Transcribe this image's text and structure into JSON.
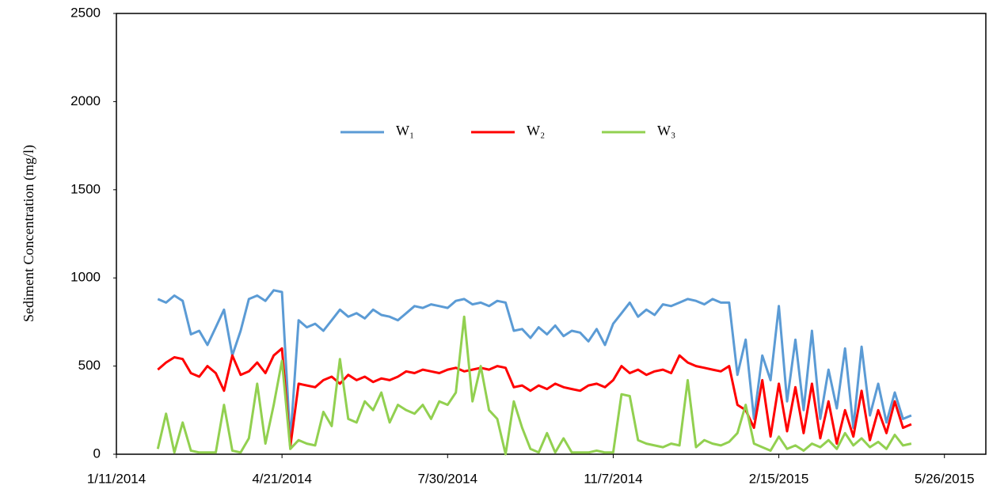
{
  "chart_data": {
    "type": "line",
    "y_label": "Sediment Concentration  (mg/l)",
    "x": [
      "2014-02-05",
      "2014-02-10",
      "2014-02-15",
      "2014-02-20",
      "2014-02-25",
      "2014-03-02",
      "2014-03-07",
      "2014-03-12",
      "2014-03-17",
      "2014-03-22",
      "2014-03-27",
      "2014-04-01",
      "2014-04-06",
      "2014-04-11",
      "2014-04-16",
      "2014-04-21",
      "2014-04-26",
      "2014-05-01",
      "2014-05-06",
      "2014-05-11",
      "2014-05-16",
      "2014-05-21",
      "2014-05-26",
      "2014-05-31",
      "2014-06-05",
      "2014-06-10",
      "2014-06-15",
      "2014-06-20",
      "2014-06-25",
      "2014-06-30",
      "2014-07-05",
      "2014-07-10",
      "2014-07-15",
      "2014-07-20",
      "2014-07-25",
      "2014-07-30",
      "2014-08-04",
      "2014-08-09",
      "2014-08-14",
      "2014-08-19",
      "2014-08-24",
      "2014-08-29",
      "2014-09-03",
      "2014-09-08",
      "2014-09-13",
      "2014-09-18",
      "2014-09-23",
      "2014-09-28",
      "2014-10-03",
      "2014-10-08",
      "2014-10-13",
      "2014-10-18",
      "2014-10-23",
      "2014-10-28",
      "2014-11-02",
      "2014-11-07",
      "2014-11-12",
      "2014-11-17",
      "2014-11-22",
      "2014-11-27",
      "2014-12-02",
      "2014-12-07",
      "2014-12-12",
      "2014-12-17",
      "2014-12-22",
      "2014-12-27",
      "2015-01-01",
      "2015-01-06",
      "2015-01-11",
      "2015-01-16",
      "2015-01-21",
      "2015-01-26",
      "2015-01-31",
      "2015-02-05",
      "2015-02-10",
      "2015-02-15",
      "2015-02-20",
      "2015-02-25",
      "2015-03-02",
      "2015-03-07",
      "2015-03-12",
      "2015-03-17",
      "2015-03-22",
      "2015-03-27",
      "2015-04-01",
      "2015-04-06",
      "2015-04-11",
      "2015-04-16",
      "2015-04-21",
      "2015-04-26",
      "2015-05-01",
      "2015-05-06"
    ],
    "series": [
      {
        "name": "W₁",
        "color": "#5b9bd5",
        "values": [
          880,
          860,
          900,
          870,
          680,
          700,
          620,
          720,
          820,
          560,
          700,
          880,
          900,
          870,
          930,
          920,
          70,
          760,
          720,
          740,
          700,
          760,
          820,
          780,
          800,
          770,
          820,
          790,
          780,
          760,
          800,
          840,
          830,
          850,
          840,
          830,
          870,
          880,
          850,
          860,
          840,
          870,
          860,
          700,
          710,
          660,
          720,
          680,
          730,
          670,
          700,
          690,
          640,
          710,
          620,
          740,
          800,
          860,
          780,
          820,
          790,
          850,
          840,
          860,
          880,
          870,
          850,
          880,
          860,
          860,
          450,
          650,
          200,
          560,
          420,
          840,
          300,
          650,
          250,
          700,
          200,
          480,
          260,
          600,
          150,
          610,
          220,
          400,
          180,
          350,
          200,
          220
        ]
      },
      {
        "name": "W₂",
        "color": "#ff0000",
        "values": [
          480,
          520,
          550,
          540,
          460,
          440,
          500,
          460,
          360,
          560,
          450,
          470,
          520,
          460,
          560,
          600,
          40,
          400,
          390,
          380,
          420,
          440,
          400,
          450,
          420,
          440,
          410,
          430,
          420,
          440,
          470,
          460,
          480,
          470,
          460,
          480,
          490,
          470,
          480,
          490,
          480,
          500,
          490,
          380,
          390,
          360,
          390,
          370,
          400,
          380,
          370,
          360,
          390,
          400,
          380,
          420,
          500,
          460,
          480,
          450,
          470,
          480,
          460,
          560,
          520,
          500,
          490,
          480,
          470,
          500,
          280,
          250,
          150,
          420,
          100,
          400,
          130,
          380,
          120,
          400,
          90,
          300,
          60,
          250,
          100,
          360,
          80,
          250,
          120,
          300,
          150,
          170
        ]
      },
      {
        "name": "W₃",
        "color": "#92d050",
        "values": [
          30,
          230,
          10,
          180,
          20,
          10,
          10,
          10,
          280,
          20,
          10,
          90,
          400,
          60,
          280,
          530,
          30,
          80,
          60,
          50,
          240,
          160,
          540,
          200,
          180,
          300,
          250,
          350,
          180,
          280,
          250,
          230,
          280,
          200,
          300,
          280,
          350,
          780,
          300,
          500,
          250,
          200,
          0,
          300,
          150,
          30,
          10,
          120,
          10,
          90,
          10,
          10,
          10,
          20,
          10,
          10,
          340,
          330,
          80,
          60,
          50,
          40,
          60,
          50,
          420,
          40,
          80,
          60,
          50,
          70,
          120,
          280,
          60,
          40,
          20,
          100,
          30,
          50,
          20,
          60,
          40,
          80,
          30,
          120,
          50,
          90,
          40,
          70,
          30,
          110,
          50,
          60
        ]
      }
    ],
    "xlim": [
      "2014-01-11",
      "2015-06-20"
    ],
    "xticks": [
      {
        "value": "2014-01-11",
        "label": "1/11/2014"
      },
      {
        "value": "2014-04-21",
        "label": "4/21/2014"
      },
      {
        "value": "2014-07-30",
        "label": "7/30/2014"
      },
      {
        "value": "2014-11-07",
        "label": "11/7/2014"
      },
      {
        "value": "2015-02-15",
        "label": "2/15/2015"
      },
      {
        "value": "2015-05-26",
        "label": "5/26/2015"
      }
    ],
    "ylim": [
      0,
      2500
    ],
    "yticks": [
      0,
      500,
      1000,
      1500,
      2000,
      2500
    ]
  }
}
